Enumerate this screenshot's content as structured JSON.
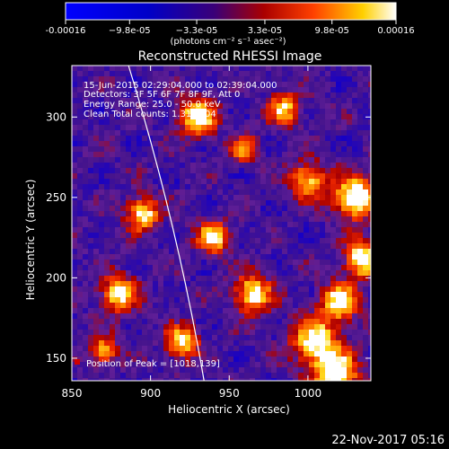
{
  "chart_data": {
    "type": "heatmap",
    "title": "Reconstructed RHESSI Image",
    "xlabel": "Heliocentric X (arcsec)",
    "ylabel": "Heliocentric Y (arcsec)",
    "xlim": [
      850,
      1040
    ],
    "ylim": [
      136,
      332
    ],
    "x_ticks": [
      850,
      900,
      950,
      1000
    ],
    "y_ticks": [
      150,
      200,
      250,
      300
    ],
    "grid": false,
    "colorbar": {
      "position": "top",
      "range": [
        -0.00016,
        0.00016
      ],
      "tick_values": [
        -0.00016,
        -9.8e-05,
        -3.3e-05,
        3.3e-05,
        9.8e-05,
        0.00016
      ],
      "tick_labels": [
        "-0.00016",
        "−9.8e-05",
        "−3.3e-05",
        "3.3e-05",
        "9.8e-05",
        "0.00016"
      ],
      "unit_label": "(photons cm⁻² s⁻¹ asec⁻²)"
    },
    "info_lines": [
      "15-Jun-2015 02:29:04.000 to 02:39:04.000",
      "Detectors: 3F 5F 6F 7F 8F 9F, Att 0",
      "Energy Range: 25.0 - 50.0 keV",
      "Clean     Total counts: 1.31E+04"
    ],
    "peak": {
      "label": "Position of Peak = [1018,139]",
      "x": 1018,
      "y": 139
    },
    "limb": {
      "x_at_top": 886,
      "x_at_bottom": 934,
      "curvature": 4
    },
    "footer_date": "22-Nov-2017 05:16",
    "hot_spots": [
      {
        "x": 1030,
        "y": 250,
        "v": 1.0,
        "r": 9
      },
      {
        "x": 1035,
        "y": 212,
        "v": 0.95,
        "r": 8
      },
      {
        "x": 1018,
        "y": 140,
        "v": 1.0,
        "r": 9
      },
      {
        "x": 1005,
        "y": 160,
        "v": 0.9,
        "r": 10
      },
      {
        "x": 965,
        "y": 190,
        "v": 0.85,
        "r": 8
      },
      {
        "x": 920,
        "y": 160,
        "v": 0.8,
        "r": 7
      },
      {
        "x": 880,
        "y": 190,
        "v": 0.8,
        "r": 8
      },
      {
        "x": 895,
        "y": 240,
        "v": 0.85,
        "r": 7
      },
      {
        "x": 930,
        "y": 300,
        "v": 0.9,
        "r": 8
      },
      {
        "x": 1000,
        "y": 260,
        "v": 0.75,
        "r": 8
      },
      {
        "x": 985,
        "y": 305,
        "v": 0.7,
        "r": 7
      },
      {
        "x": 870,
        "y": 155,
        "v": 0.7,
        "r": 6
      },
      {
        "x": 940,
        "y": 225,
        "v": 0.8,
        "r": 7
      },
      {
        "x": 1020,
        "y": 185,
        "v": 0.85,
        "r": 8
      },
      {
        "x": 960,
        "y": 280,
        "v": 0.6,
        "r": 6
      }
    ]
  }
}
